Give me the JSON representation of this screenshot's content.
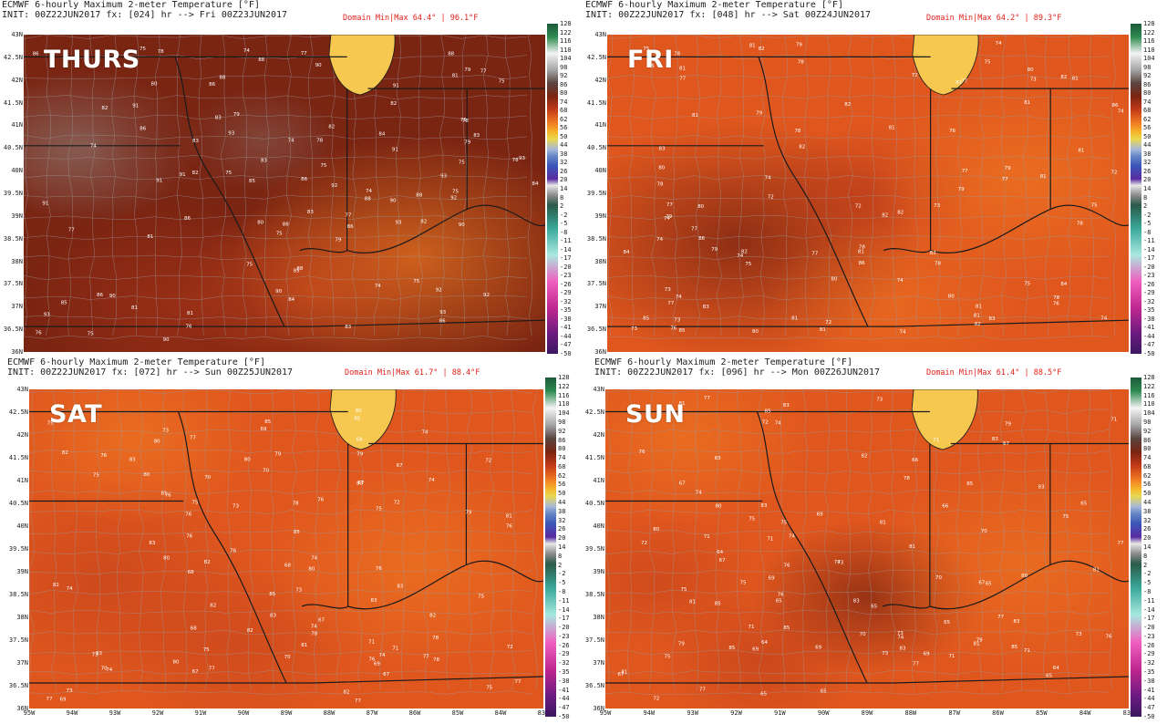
{
  "panels": [
    {
      "title": "ECMWF 6-hourly Maximum 2-meter Temperature [°F]",
      "init": "INIT: 00Z22JUN2017 fx: [024] hr --> Fri 00Z23JUN2017",
      "domain": "Domain Min|Max 64.4° | 96.1°F",
      "day_label": "THURS",
      "sample_values": [
        "88",
        "86",
        "90",
        "93",
        "91",
        "92",
        "94",
        "85",
        "87",
        "83",
        "84",
        "78",
        "77",
        "79",
        "76",
        "75",
        "74",
        "80",
        "81",
        "82"
      ]
    },
    {
      "title": "ECMWF 6-hourly Maximum 2-meter Temperature [°F]",
      "init": "INIT: 00Z22JUN2017 fx: [048] hr --> Sat 00Z24JUN2017",
      "domain": "Domain Min|Max 64.2° | 89.3°F",
      "day_label": "FRI",
      "sample_values": [
        "80",
        "81",
        "79",
        "78",
        "74",
        "82",
        "84",
        "85",
        "86",
        "83",
        "77",
        "75",
        "76",
        "73",
        "72",
        "79",
        "80",
        "81",
        "82",
        "78"
      ]
    },
    {
      "title": "ECMWF 6-hourly Maximum 2-meter Temperature [°F]",
      "init": "INIT: 00Z22JUN2017 fx: [072] hr --> Sun 00Z25JUN2017",
      "domain": "Domain Min|Max 61.7° | 88.4°F",
      "day_label": "SAT",
      "sample_values": [
        "71",
        "69",
        "72",
        "74",
        "75",
        "76",
        "77",
        "73",
        "70",
        "78",
        "79",
        "80",
        "81",
        "82",
        "83",
        "85",
        "67",
        "68",
        "77",
        "76"
      ]
    },
    {
      "title": "ECMWF 6-hourly Maximum 2-meter Temperature [°F]",
      "init": "INIT: 00Z22JUN2017 fx: [096] hr --> Mon 00Z26JUN2017",
      "domain": "Domain Min|Max 61.4° | 88.5°F",
      "day_label": "SUN",
      "sample_values": [
        "64",
        "65",
        "66",
        "67",
        "69",
        "70",
        "71",
        "72",
        "73",
        "74",
        "75",
        "76",
        "77",
        "78",
        "79",
        "80",
        "81",
        "82",
        "83",
        "85"
      ]
    }
  ],
  "lat_labels": [
    "43N",
    "42.5N",
    "42N",
    "41.5N",
    "41N",
    "40.5N",
    "40N",
    "39.5N",
    "39N",
    "38.5N",
    "38N",
    "37.5N",
    "37N",
    "36.5N",
    "36N"
  ],
  "lon_labels": [
    "95W",
    "94W",
    "93W",
    "92W",
    "91W",
    "90W",
    "89W",
    "88W",
    "87W",
    "86W",
    "85W",
    "84W",
    "83W"
  ],
  "colorbar_ticks": [
    "128",
    "122",
    "116",
    "110",
    "104",
    "98",
    "92",
    "86",
    "80",
    "74",
    "68",
    "62",
    "56",
    "50",
    "44",
    "38",
    "32",
    "26",
    "20",
    "14",
    "8",
    "2",
    "-2",
    "-5",
    "-8",
    "-11",
    "-14",
    "-17",
    "-20",
    "-23",
    "-26",
    "-29",
    "-32",
    "-35",
    "-38",
    "-41",
    "-44",
    "-47",
    "-50"
  ],
  "colors": {
    "hot_dark": "#7a2412",
    "hot_mid": "#b8391a",
    "warm": "#e0571e",
    "orange": "#f07a22",
    "lake": "#f6c850",
    "grey_hot": "#8f7e7a",
    "border": "#1a1a1a",
    "county": "#9a9a9a",
    "domain_text": "#e0201a"
  }
}
